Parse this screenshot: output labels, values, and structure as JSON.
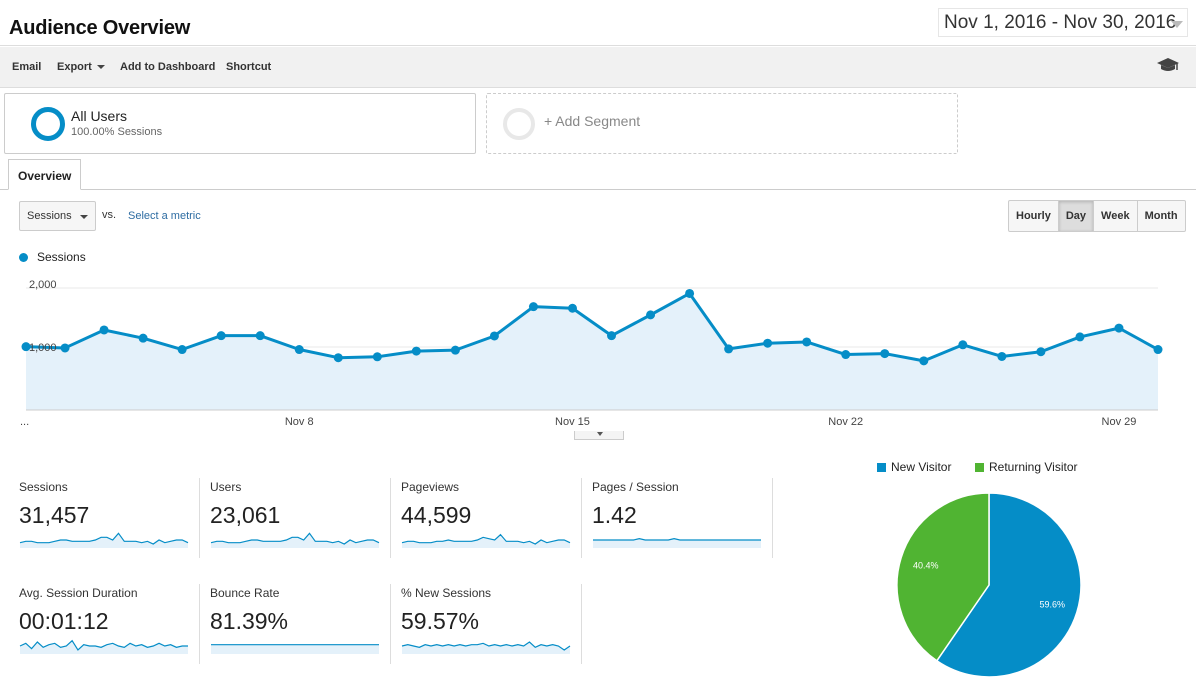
{
  "header": {
    "title": "Audience Overview",
    "date_range": "Nov 1, 2016 - Nov 30, 2016"
  },
  "toolbar": {
    "email": "Email",
    "export": "Export",
    "add_to_dashboard": "Add to Dashboard",
    "shortcut": "Shortcut",
    "help_icon": "graduation-cap-icon"
  },
  "segments": {
    "active": {
      "name": "All Users",
      "subtitle": "100.00% Sessions"
    },
    "add_label": "+ Add Segment"
  },
  "tabs": {
    "overview": "Overview"
  },
  "chart_controls": {
    "metric": "Sessions",
    "vs": "vs.",
    "select_metric": "Select a metric",
    "periods": [
      "Hourly",
      "Day",
      "Week",
      "Month"
    ],
    "active_period": "Day"
  },
  "colors": {
    "accent": "#058dc7",
    "returning": "#50b432",
    "fill": "#e4f1fa",
    "link": "#2d6ca2"
  },
  "chart_data": [
    {
      "type": "area",
      "series": [
        {
          "name": "Sessions",
          "values": [
            1005,
            985,
            1270,
            1140,
            960,
            1180,
            1180,
            960,
            830,
            845,
            935,
            950,
            1175,
            1640,
            1615,
            1180,
            1510,
            1850,
            970,
            1060,
            1080,
            880,
            895,
            780,
            1035,
            850,
            925,
            1160,
            1300,
            960
          ]
        }
      ],
      "x": [
        "Nov 1",
        "Nov 2",
        "Nov 3",
        "Nov 4",
        "Nov 5",
        "Nov 6",
        "Nov 7",
        "Nov 8",
        "Nov 9",
        "Nov 10",
        "Nov 11",
        "Nov 12",
        "Nov 13",
        "Nov 14",
        "Nov 15",
        "Nov 16",
        "Nov 17",
        "Nov 18",
        "Nov 19",
        "Nov 20",
        "Nov 21",
        "Nov 22",
        "Nov 23",
        "Nov 24",
        "Nov 25",
        "Nov 26",
        "Nov 27",
        "Nov 28",
        "Nov 29",
        "Nov 30"
      ],
      "x_tick_labels": [
        "...",
        "Nov 8",
        "Nov 15",
        "Nov 22",
        "Nov 29"
      ],
      "y_tick_labels": [
        "2,000",
        "1,000"
      ],
      "ylim": [
        0,
        2000
      ],
      "legend": "Sessions",
      "grid": true
    },
    {
      "type": "pie",
      "slices": [
        {
          "label": "New Visitor",
          "value": 59.6,
          "display": "59.6%"
        },
        {
          "label": "Returning Visitor",
          "value": 40.4,
          "display": "40.4%"
        }
      ],
      "legend_placement": "top"
    }
  ],
  "scorecards": [
    {
      "label": "Sessions",
      "value": "31,457",
      "spark": [
        4,
        5,
        5,
        4,
        4,
        4,
        5,
        6,
        6,
        5,
        5,
        5,
        5,
        6,
        8,
        8,
        6,
        11,
        5,
        5,
        5,
        4,
        5,
        3,
        6,
        4,
        5,
        6,
        6,
        4
      ]
    },
    {
      "label": "Users",
      "value": "23,061",
      "spark": [
        4,
        5,
        5,
        4,
        4,
        4,
        5,
        6,
        6,
        5,
        5,
        5,
        5,
        6,
        8,
        8,
        6,
        11,
        5,
        5,
        5,
        4,
        5,
        3,
        6,
        4,
        5,
        6,
        6,
        4
      ]
    },
    {
      "label": "Pageviews",
      "value": "44,599",
      "spark": [
        4,
        5,
        5,
        4,
        4,
        4,
        5,
        5,
        6,
        5,
        5,
        5,
        5,
        6,
        8,
        7,
        6,
        10,
        5,
        5,
        5,
        4,
        5,
        3,
        6,
        4,
        5,
        6,
        6,
        4
      ]
    },
    {
      "label": "Pages / Session",
      "value": "1.42",
      "spark": [
        6,
        6,
        6,
        6,
        6,
        6,
        6,
        6,
        7,
        6,
        6,
        6,
        6,
        6,
        7,
        6,
        6,
        6,
        6,
        6,
        6,
        6,
        6,
        6,
        6,
        6,
        6,
        6,
        6,
        6
      ]
    },
    {
      "label": "Avg. Session Duration",
      "value": "00:01:12",
      "spark": [
        6,
        8,
        4,
        9,
        5,
        7,
        8,
        5,
        6,
        10,
        3,
        7,
        6,
        6,
        5,
        7,
        8,
        6,
        5,
        8,
        6,
        7,
        5,
        6,
        8,
        6,
        7,
        5,
        6,
        6
      ]
    },
    {
      "label": "Bounce Rate",
      "value": "81.39%",
      "spark": [
        7,
        7,
        7,
        7,
        7,
        7,
        7,
        7,
        7,
        7,
        7,
        7,
        7,
        7,
        7,
        7,
        7,
        7,
        7,
        7,
        7,
        7,
        7,
        7,
        7,
        7,
        7,
        7,
        7,
        7
      ]
    },
    {
      "label": "% New Sessions",
      "value": "59.57%",
      "spark": [
        6,
        7,
        6,
        5,
        7,
        6,
        7,
        6,
        7,
        6,
        7,
        6,
        7,
        7,
        8,
        6,
        7,
        6,
        7,
        6,
        7,
        6,
        9,
        5,
        7,
        6,
        7,
        6,
        3,
        6
      ]
    }
  ]
}
